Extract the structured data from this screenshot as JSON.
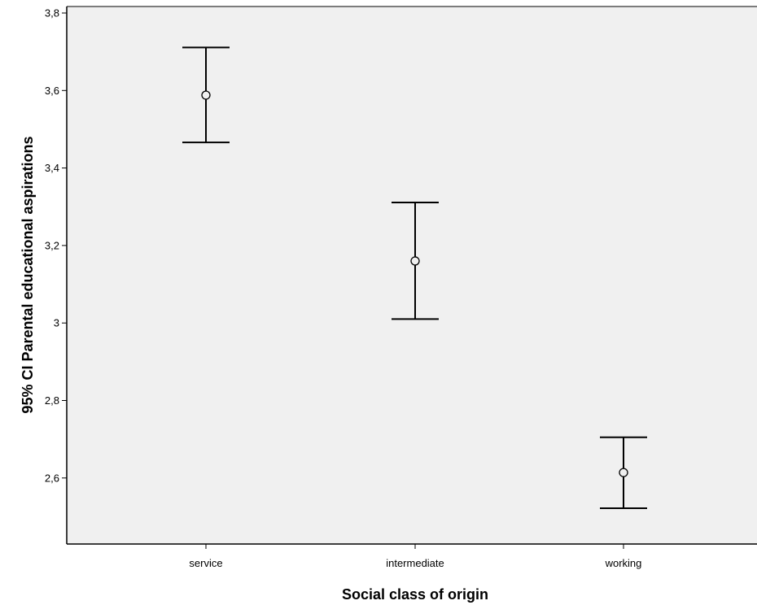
{
  "chart_data": {
    "type": "errorbar",
    "xlabel": "Social class of origin",
    "ylabel": "95% CI Parental educational aspirations",
    "categories": [
      "service",
      "intermediate",
      "working"
    ],
    "means": [
      3.588,
      3.16,
      2.614
    ],
    "ci_lower": [
      3.466,
      3.01,
      2.522
    ],
    "ci_upper": [
      3.711,
      3.311,
      2.705
    ],
    "ylim": [
      2.44,
      3.82
    ],
    "yticks": [
      2.6,
      2.8,
      3.0,
      3.2,
      3.4,
      3.6,
      3.8
    ],
    "ytick_labels": [
      "2,6",
      "2,8",
      "3",
      "3,2",
      "3,4",
      "3,6",
      "3,8"
    ],
    "grid": false,
    "colors": {
      "plot_background": "#f0f0f0",
      "marks": "#000000"
    }
  }
}
